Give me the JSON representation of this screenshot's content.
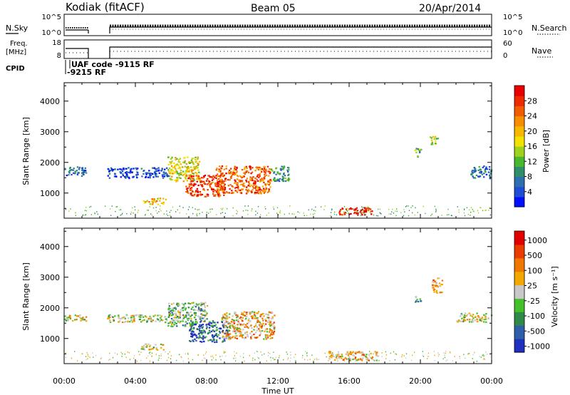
{
  "header": {
    "station": "Kodiak (fitACF)",
    "beam": "Beam 05",
    "date": "20/Apr/2014"
  },
  "strips": {
    "nsky_label": "N.Sky",
    "nsearch_label": "N.Search",
    "left_ticks": [
      "10^5",
      "10^0"
    ],
    "right_ticks": [
      "10^5",
      "10^0"
    ],
    "freq_label": [
      "Freq.",
      "[MHz]"
    ],
    "freq_ticks": [
      "18",
      "8"
    ],
    "nave_label": "Nave",
    "nave_ticks": [
      "60",
      "0"
    ],
    "cpid_label": "CPID",
    "cpid_texts": [
      "UAF code -9115 RF",
      "-9215 RF"
    ]
  },
  "chart_data": [
    {
      "type": "heatmap",
      "title": "",
      "ylabel": "Slant Range [km]",
      "xlabel": "",
      "ylim": [
        180,
        4600
      ],
      "xlim": [
        "00:00",
        "00:00"
      ],
      "yticks": [
        "1000",
        "2000",
        "3000",
        "4000"
      ],
      "colorbar": {
        "label": "Power [dB]",
        "ticks": [
          "4",
          "8",
          "12",
          "16",
          "20",
          "24",
          "28"
        ],
        "colors": [
          "#0010ff",
          "#1f4dd6",
          "#2e6fb0",
          "#2f8f6c",
          "#49b830",
          "#9fd21e",
          "#f2e200",
          "#f7b800",
          "#f78d00",
          "#f25c00",
          "#ee2a00",
          "#e80000"
        ]
      },
      "regions": [
        {
          "t0": 0.0,
          "t1": 1.2,
          "r0": 1580,
          "r1": 1900,
          "level": 2
        },
        {
          "t0": 2.4,
          "t1": 5.8,
          "r0": 1500,
          "r1": 1850,
          "level": 1
        },
        {
          "t0": 5.8,
          "t1": 7.6,
          "r0": 1400,
          "r1": 2200,
          "level": 6
        },
        {
          "t0": 6.8,
          "t1": 9.0,
          "r0": 900,
          "r1": 1600,
          "level": 10
        },
        {
          "t0": 8.5,
          "t1": 11.6,
          "r0": 1000,
          "r1": 1900,
          "level": 9
        },
        {
          "t0": 11.6,
          "t1": 12.6,
          "r0": 1400,
          "r1": 1900,
          "level": 3
        },
        {
          "t0": 4.4,
          "t1": 5.7,
          "r0": 650,
          "r1": 850,
          "level": 7
        },
        {
          "t0": 15.4,
          "t1": 17.3,
          "r0": 300,
          "r1": 550,
          "level": 11
        },
        {
          "t0": 19.6,
          "t1": 20.0,
          "r0": 2200,
          "r1": 2500,
          "level": 4
        },
        {
          "t0": 20.5,
          "t1": 21.0,
          "r0": 2600,
          "r1": 2900,
          "level": 5
        },
        {
          "t0": 22.8,
          "t1": 24.0,
          "r0": 1500,
          "r1": 1900,
          "level": 2
        }
      ]
    },
    {
      "type": "heatmap",
      "title": "",
      "ylabel": "Slant Range [km]",
      "xlabel": "Time UT",
      "ylim": [
        180,
        4600
      ],
      "xticks": [
        "00:00",
        "04:00",
        "08:00",
        "12:00",
        "16:00",
        "20:00",
        "00:00"
      ],
      "yticks": [
        "1000",
        "2000",
        "3000",
        "4000"
      ],
      "colorbar": {
        "label": "Velocity [m s⁻¹]",
        "ticks": [
          "1000",
          "500",
          "100",
          "25",
          "-25",
          "-100",
          "-500",
          "-1000"
        ],
        "colors": [
          "#1f2fbf",
          "#2e5fa8",
          "#2f8a4a",
          "#43c02a",
          "#c8c8c8",
          "#f2a800",
          "#f07800",
          "#ea3c00",
          "#e00000"
        ]
      },
      "regions": [
        {
          "t0": 0.0,
          "t1": 1.2,
          "r0": 1580,
          "r1": 1800,
          "level": 4
        },
        {
          "t0": 2.4,
          "t1": 5.8,
          "r0": 1550,
          "r1": 1800,
          "level": 4
        },
        {
          "t0": 5.8,
          "t1": 8.0,
          "r0": 1400,
          "r1": 2200,
          "level": 3
        },
        {
          "t0": 7.0,
          "t1": 9.2,
          "r0": 900,
          "r1": 1600,
          "level": 1
        },
        {
          "t0": 8.8,
          "t1": 11.8,
          "r0": 1000,
          "r1": 1900,
          "level": 5
        },
        {
          "t0": 4.3,
          "t1": 5.6,
          "r0": 650,
          "r1": 850,
          "level": 4
        },
        {
          "t0": 14.8,
          "t1": 17.6,
          "r0": 300,
          "r1": 600,
          "level": 5
        },
        {
          "t0": 19.6,
          "t1": 20.0,
          "r0": 2200,
          "r1": 2400,
          "level": 2
        },
        {
          "t0": 20.6,
          "t1": 21.2,
          "r0": 2500,
          "r1": 3000,
          "level": 6
        },
        {
          "t0": 22.0,
          "t1": 24.0,
          "r0": 1550,
          "r1": 1850,
          "level": 4
        }
      ]
    }
  ]
}
